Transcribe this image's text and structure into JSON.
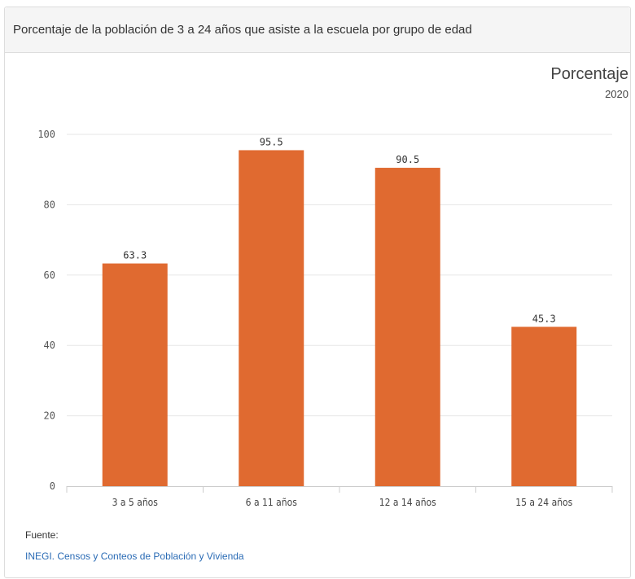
{
  "header": {
    "title": "Porcentaje de la población de 3 a 24 años que asiste a la escuela por grupo de edad"
  },
  "chart_meta": {
    "unit_label": "Porcentaje",
    "year_label": "2020"
  },
  "chart_data": {
    "type": "bar",
    "title": "Porcentaje de la población de 3 a 24 años que asiste a la escuela por grupo de edad",
    "xlabel": "",
    "ylabel": "Porcentaje",
    "categories": [
      "3 a 5 años",
      "6 a 11 años",
      "12 a 14 años",
      "15 a 24 años"
    ],
    "series": [
      {
        "name": "2020",
        "values": [
          63.3,
          95.5,
          90.5,
          45.3
        ]
      }
    ],
    "data_labels": [
      "63.3",
      "95.5",
      "90.5",
      "45.3"
    ],
    "ylim": [
      0,
      100
    ],
    "yticks": [
      0,
      20,
      40,
      60,
      80,
      100
    ],
    "ytick_labels": [
      "0",
      "20",
      "40",
      "60",
      "80",
      "100"
    ],
    "grid": true,
    "legend": "none",
    "bar_color": "#e06a30"
  },
  "footer": {
    "source_label": "Fuente:",
    "source_link": "INEGI. Censos y Conteos de Población y Vivienda"
  }
}
